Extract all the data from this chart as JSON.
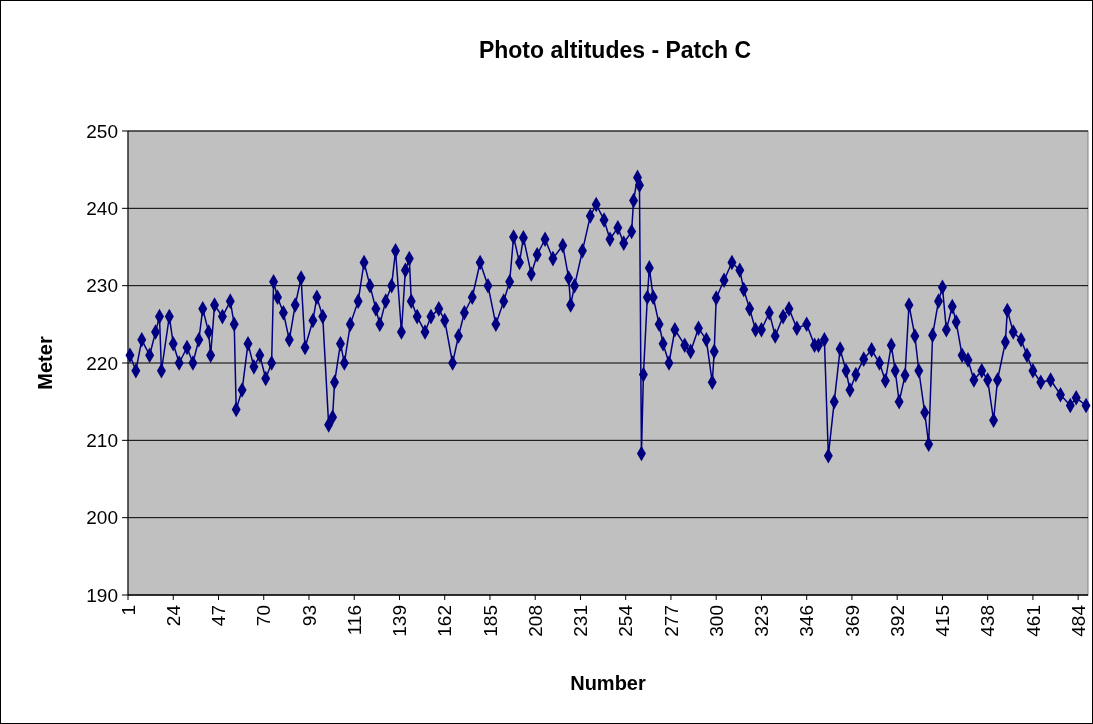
{
  "chart_data": {
    "type": "line",
    "title": "Photo altitudes - Patch C",
    "xlabel": "Number",
    "ylabel": "Meter",
    "xlim": [
      1,
      489
    ],
    "xticks": [
      1,
      24,
      47,
      70,
      93,
      116,
      139,
      162,
      185,
      208,
      231,
      254,
      277,
      300,
      323,
      346,
      369,
      392,
      415,
      438,
      461,
      484
    ],
    "ylim": [
      190,
      250
    ],
    "yticks": [
      190,
      200,
      210,
      220,
      230,
      240,
      250
    ],
    "grid": "y",
    "marker": "diamond",
    "line_style": "solid",
    "series": [
      {
        "color": "#000080",
        "x": [
          2,
          5,
          8,
          12,
          15,
          17,
          18,
          22,
          24,
          27,
          31,
          34,
          37,
          39,
          42,
          43,
          45,
          49,
          53,
          55,
          56,
          59,
          62,
          65,
          68,
          71,
          74,
          75,
          77,
          80,
          83,
          86,
          89,
          91,
          95,
          97,
          100,
          103,
          105,
          106,
          109,
          111,
          114,
          118,
          121,
          124,
          127,
          129,
          132,
          135,
          137,
          140,
          142,
          144,
          145,
          148,
          152,
          155,
          159,
          162,
          166,
          169,
          172,
          176,
          180,
          184,
          188,
          192,
          195,
          197,
          200,
          202,
          206,
          209,
          213,
          217,
          222,
          225,
          226,
          228,
          232,
          236,
          239,
          243,
          246,
          250,
          253,
          257,
          258,
          260,
          261,
          262,
          263,
          265,
          266,
          268,
          271,
          273,
          276,
          279,
          284,
          287,
          291,
          295,
          298,
          299,
          300,
          304,
          308,
          312,
          314,
          317,
          320,
          323,
          327,
          330,
          334,
          337,
          341,
          346,
          350,
          352,
          355,
          357,
          360,
          363,
          366,
          368,
          371,
          375,
          379,
          383,
          386,
          389,
          391,
          393,
          396,
          398,
          401,
          403,
          406,
          408,
          410,
          413,
          415,
          417,
          420,
          422,
          425,
          428,
          431,
          435,
          438,
          441,
          443,
          447,
          448,
          451,
          455,
          458,
          461,
          465,
          470,
          475,
          480,
          483,
          488
        ],
        "values": [
          221,
          219,
          223,
          221,
          224,
          226,
          219,
          226,
          222.5,
          220,
          222,
          220,
          223,
          227,
          224,
          221,
          227.5,
          226,
          228,
          225,
          214,
          216.5,
          222.5,
          219.5,
          221,
          218,
          220,
          230.5,
          228.5,
          226.5,
          223,
          227.5,
          231,
          222,
          225.5,
          228.5,
          226,
          212,
          213,
          217.5,
          222.5,
          220,
          225,
          228,
          233,
          230,
          227,
          225,
          228,
          230,
          234.5,
          224,
          232,
          233.5,
          228,
          226,
          224,
          226,
          227,
          225.5,
          220,
          223.5,
          226.5,
          228.5,
          233,
          230,
          225,
          228,
          230.5,
          236.3,
          233,
          236.2,
          231.5,
          234,
          236,
          233.5,
          235.2,
          231,
          227.5,
          230,
          234.5,
          239,
          240.5,
          238.5,
          236,
          237.5,
          235.5,
          237,
          241,
          244,
          243,
          208.3,
          218.5,
          228.5,
          232.3,
          228.5,
          225,
          222.5,
          220,
          224.3,
          222.3,
          221.5,
          224.5,
          223,
          217.5,
          221.5,
          228.4,
          230.7,
          233,
          232,
          229.5,
          227,
          224.3,
          224.3,
          226.5,
          223.5,
          226,
          227,
          224.5,
          225,
          222.3,
          222.3,
          223,
          208,
          215,
          221.8,
          219,
          216.5,
          218.5,
          220.5,
          221.7,
          220,
          217.7,
          222.3,
          219,
          215,
          218.4,
          227.5,
          223.5,
          219,
          213.6,
          209.5,
          223.6,
          228,
          229.8,
          224.3,
          227.3,
          225.3,
          221,
          220.4,
          217.8,
          219,
          217.8,
          212.6,
          217.8,
          222.7,
          226.8,
          224,
          223,
          221,
          219,
          217.5,
          217.8,
          215.9,
          214.5,
          215.5,
          214.5
        ]
      }
    ]
  }
}
